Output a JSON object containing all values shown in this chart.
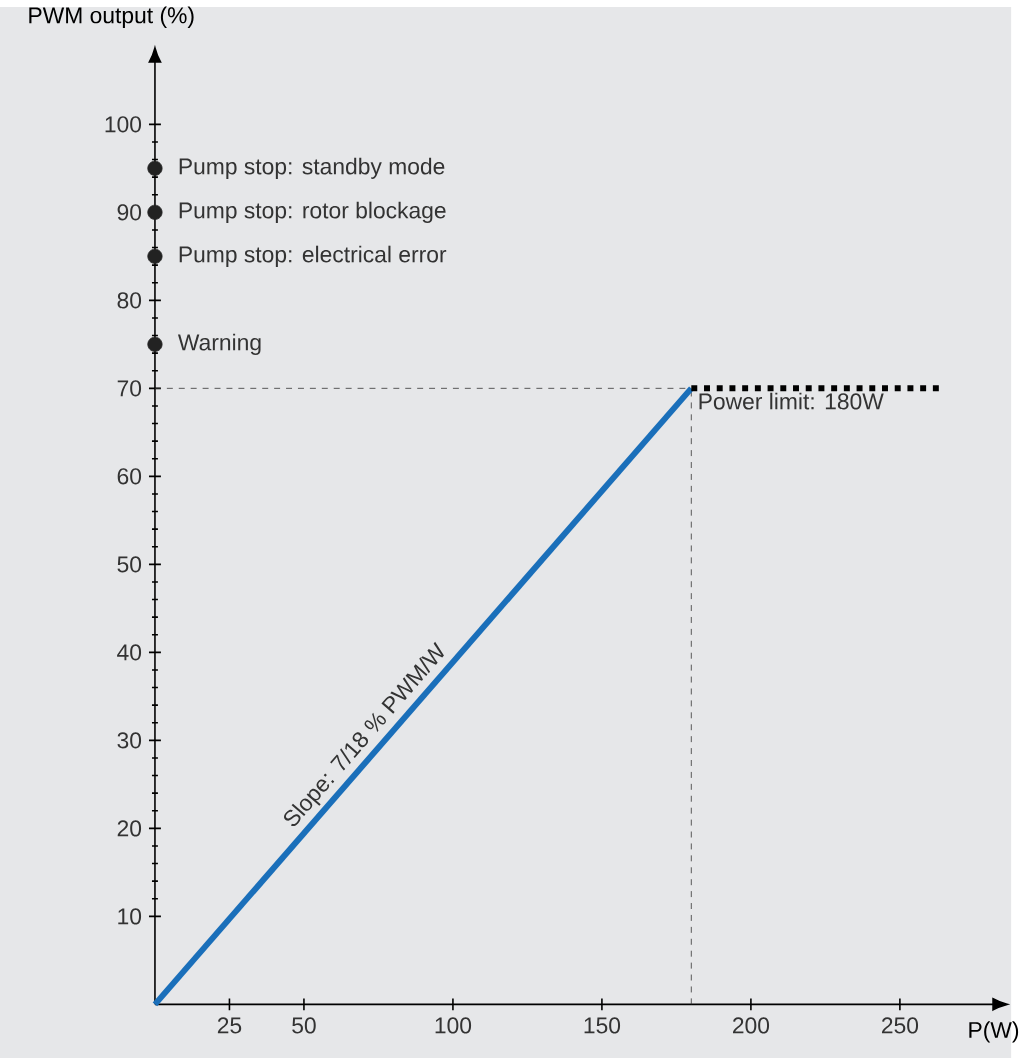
{
  "chart_data": {
    "type": "line",
    "xlabel": "P(W)",
    "ylabel": "PWM output (%)",
    "xlim": [
      0,
      281
    ],
    "ylim": [
      0,
      107
    ],
    "xticks": [
      25,
      50,
      100,
      150,
      200,
      250
    ],
    "yticks": [
      10,
      20,
      30,
      40,
      50,
      60,
      70,
      80,
      90,
      100
    ],
    "grid": false,
    "series": [
      {
        "color": "#1a6fba",
        "x": [
          0,
          180
        ],
        "values": [
          0,
          70
        ],
        "line_style": "solid"
      },
      {
        "color": "#000000",
        "x": [
          180,
          265
        ],
        "values": [
          70,
          70
        ],
        "line_style": "dotted"
      },
      {
        "type": "scatter",
        "color": "#222222",
        "x": [
          0,
          0,
          0,
          0
        ],
        "values": [
          75,
          85,
          90,
          95
        ]
      }
    ],
    "ref_lines": [
      {
        "axis": "y",
        "value": 70,
        "color": "#333333",
        "line_style": "dashed"
      },
      {
        "axis": "x",
        "value": 180,
        "color": "#333333",
        "line_style": "dashed"
      }
    ],
    "annotations": [
      {
        "text": "Pump stop: standby mode",
        "x": 0,
        "y": 95
      },
      {
        "text": "Pump stop: rotor blockage",
        "x": 0,
        "y": 90
      },
      {
        "text": "Pump stop: electrical error",
        "x": 0,
        "y": 85
      },
      {
        "text": "Warning",
        "x": 0,
        "y": 75
      },
      {
        "text": "Power limit: 180W",
        "x": 180,
        "y": 70
      },
      {
        "text": "Slope: 7/18 % PWM/W",
        "x": 75,
        "y": 29.17
      }
    ]
  }
}
